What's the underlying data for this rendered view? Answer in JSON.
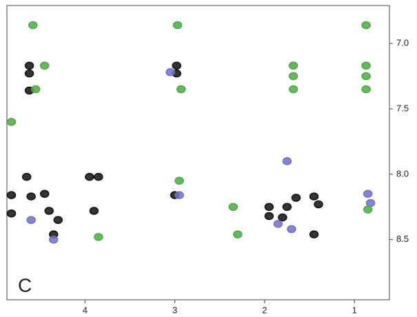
{
  "chart_data": {
    "type": "scatter",
    "label": "C",
    "xlim": [
      4.87,
      0.61
    ],
    "xticks": [
      4,
      3,
      2,
      1
    ],
    "ylim": [
      6.71,
      8.96
    ],
    "yticks": [
      {
        "value": 7,
        "label": "7.0"
      },
      7.5,
      {
        "value": 8,
        "label": "8.0"
      },
      8.5
    ],
    "series": [
      {
        "color": "#111111",
        "x": [
          4.62,
          4.62,
          4.62,
          2.98,
          2.98,
          4.82,
          4.82,
          4.6,
          4.45,
          4.4,
          4.3,
          4.35,
          3.85,
          3.95,
          3.0,
          1.95,
          1.95,
          1.75,
          1.65,
          1.45,
          1.45,
          1.4,
          1.8,
          4.65,
          3.9
        ],
        "y": [
          7.17,
          7.23,
          7.36,
          7.17,
          7.23,
          8.16,
          8.3,
          8.17,
          8.15,
          8.28,
          8.35,
          8.46,
          8.02,
          8.02,
          8.16,
          8.25,
          8.32,
          8.25,
          8.18,
          8.17,
          8.46,
          8.23,
          8.33,
          8.02,
          8.28
        ]
      },
      {
        "color": "#7070c8",
        "x": [
          3.05,
          2.95,
          4.6,
          4.35,
          1.7,
          1.85,
          0.82,
          0.85,
          1.75
        ],
        "y": [
          7.22,
          8.16,
          8.35,
          8.5,
          8.42,
          8.38,
          8.22,
          8.15,
          7.9
        ]
      },
      {
        "color": "#4caa44",
        "x": [
          4.58,
          2.97,
          0.87,
          4.55,
          4.45,
          2.93,
          1.68,
          1.68,
          1.68,
          0.87,
          0.87,
          0.87,
          4.82,
          2.95,
          2.35,
          2.3,
          3.85,
          0.85
        ],
        "y": [
          6.86,
          6.86,
          6.86,
          7.35,
          7.17,
          7.35,
          7.35,
          7.25,
          7.17,
          7.17,
          7.25,
          7.35,
          7.6,
          8.05,
          8.25,
          8.46,
          8.48,
          8.27
        ]
      }
    ]
  }
}
